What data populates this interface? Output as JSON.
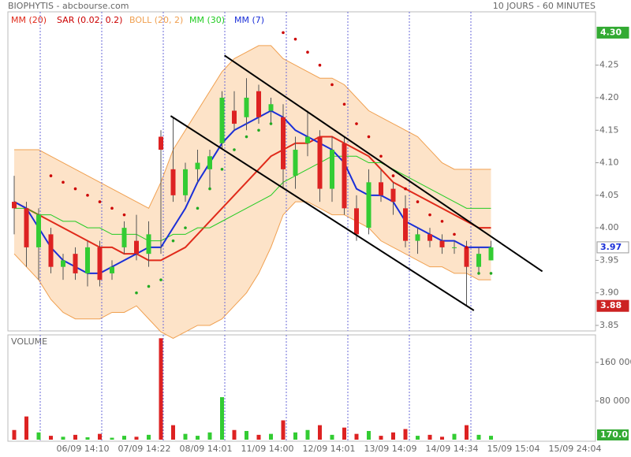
{
  "chart_data": {
    "type": "candlestick",
    "title": "BIOPHYTIS - abcbourse.com",
    "subtitle": "10 JOURS - 60 MINUTES",
    "xlabels": [
      "06/09 14:10",
      "07/09 14:22",
      "08/09 14:01",
      "11/09 14:00",
      "12/09 14:01",
      "13/09 14:09",
      "14/09 14:34",
      "15/09 15:04",
      "15/09 24:04"
    ],
    "up_color": "#33cc33",
    "down_color": "#dd2222",
    "open": [
      4.04,
      4.03,
      3.97,
      3.99,
      3.94,
      3.96,
      3.93,
      3.97,
      3.93,
      3.97,
      3.98,
      3.96,
      4.14,
      4.09,
      4.05,
      4.09,
      4.09,
      4.13,
      4.18,
      4.17,
      4.21,
      4.18,
      4.17,
      4.08,
      4.13,
      4.14,
      4.06,
      4.13,
      4.03,
      4.0,
      4.07,
      4.06,
      4.03,
      3.98,
      3.99,
      3.98,
      3.97,
      3.97,
      3.94,
      3.95
    ],
    "high": [
      4.08,
      4.04,
      4.03,
      4.0,
      3.96,
      3.97,
      3.98,
      3.98,
      3.95,
      4.01,
      4.02,
      4.01,
      4.15,
      4.17,
      4.1,
      4.12,
      4.12,
      4.21,
      4.21,
      4.23,
      4.22,
      4.2,
      4.19,
      4.14,
      4.18,
      4.15,
      4.14,
      4.14,
      4.05,
      4.09,
      4.09,
      4.07,
      4.05,
      4.0,
      4.0,
      3.99,
      3.98,
      3.98,
      3.97,
      3.98
    ],
    "low": [
      3.99,
      3.94,
      3.92,
      3.93,
      3.92,
      3.92,
      3.91,
      3.91,
      3.92,
      3.96,
      3.95,
      3.94,
      3.96,
      4.04,
      4.04,
      4.07,
      4.06,
      4.12,
      4.15,
      4.15,
      4.16,
      4.16,
      4.06,
      4.06,
      4.11,
      4.04,
      4.04,
      4.02,
      3.98,
      3.99,
      4.04,
      4.02,
      3.97,
      3.96,
      3.97,
      3.96,
      3.96,
      3.88,
      3.93,
      3.95
    ],
    "close": [
      4.03,
      3.97,
      4.02,
      3.94,
      3.95,
      3.93,
      3.97,
      3.92,
      3.94,
      4.0,
      3.96,
      3.99,
      4.12,
      4.05,
      4.09,
      4.1,
      4.11,
      4.2,
      4.16,
      4.2,
      4.17,
      4.19,
      4.09,
      4.12,
      4.14,
      4.06,
      4.12,
      4.03,
      3.99,
      4.07,
      4.05,
      4.04,
      3.98,
      3.99,
      3.98,
      3.97,
      3.97,
      3.94,
      3.96,
      3.97
    ],
    "lines": [
      {
        "name": "MM (20)",
        "color": "#e02a1a",
        "values": [
          4.04,
          4.03,
          4.02,
          4.01,
          4.0,
          3.99,
          3.98,
          3.97,
          3.97,
          3.96,
          3.96,
          3.95,
          3.95,
          3.96,
          3.97,
          3.99,
          4.01,
          4.03,
          4.05,
          4.07,
          4.09,
          4.11,
          4.12,
          4.13,
          4.13,
          4.14,
          4.14,
          4.13,
          4.12,
          4.11,
          4.09,
          4.07,
          4.06,
          4.05,
          4.04,
          4.03,
          4.02,
          4.01,
          4.0,
          4.0
        ]
      },
      {
        "name": "MM (30)",
        "color": "#22cc22",
        "values": [
          4.03,
          4.03,
          4.02,
          4.02,
          4.01,
          4.01,
          4.0,
          4.0,
          3.99,
          3.99,
          3.99,
          3.98,
          3.98,
          3.99,
          3.99,
          4.0,
          4.0,
          4.01,
          4.02,
          4.03,
          4.04,
          4.05,
          4.07,
          4.08,
          4.09,
          4.1,
          4.11,
          4.11,
          4.11,
          4.1,
          4.1,
          4.09,
          4.08,
          4.07,
          4.06,
          4.05,
          4.04,
          4.03,
          4.03,
          4.03
        ]
      },
      {
        "name": "MM (7)",
        "color": "#1a2fd8",
        "values": [
          4.04,
          4.03,
          4.0,
          3.97,
          3.95,
          3.94,
          3.93,
          3.93,
          3.94,
          3.95,
          3.96,
          3.97,
          3.97,
          4.0,
          4.03,
          4.07,
          4.1,
          4.13,
          4.15,
          4.16,
          4.17,
          4.18,
          4.17,
          4.15,
          4.14,
          4.13,
          4.12,
          4.1,
          4.06,
          4.05,
          4.05,
          4.04,
          4.01,
          4.0,
          3.99,
          3.98,
          3.98,
          3.97,
          3.97,
          3.97
        ]
      }
    ],
    "boll": {
      "name": "BOLL (20, 2)",
      "color": "#f0a050",
      "fill": "#fde3c8",
      "upper": [
        4.12,
        4.12,
        4.12,
        4.11,
        4.1,
        4.09,
        4.08,
        4.07,
        4.06,
        4.05,
        4.04,
        4.03,
        4.07,
        4.12,
        4.15,
        4.18,
        4.21,
        4.24,
        4.26,
        4.27,
        4.28,
        4.28,
        4.26,
        4.25,
        4.24,
        4.23,
        4.23,
        4.22,
        4.2,
        4.18,
        4.17,
        4.16,
        4.15,
        4.14,
        4.12,
        4.1,
        4.09,
        4.09,
        4.09,
        4.09
      ],
      "lower": [
        3.96,
        3.94,
        3.92,
        3.89,
        3.87,
        3.86,
        3.86,
        3.86,
        3.87,
        3.87,
        3.88,
        3.86,
        3.84,
        3.83,
        3.84,
        3.85,
        3.85,
        3.86,
        3.88,
        3.9,
        3.93,
        3.97,
        4.02,
        4.04,
        4.04,
        4.03,
        4.02,
        4.02,
        4.01,
        4.0,
        3.98,
        3.97,
        3.96,
        3.95,
        3.94,
        3.94,
        3.93,
        3.93,
        3.92,
        3.92
      ]
    },
    "sar": {
      "name": "SAR (0.02, 0.2)",
      "color": "#cc0000",
      "up_color": "#22aa22",
      "values": [
        null,
        null,
        null,
        4.08,
        4.07,
        4.06,
        4.05,
        4.04,
        4.03,
        4.02,
        3.9,
        3.91,
        3.92,
        3.98,
        4.0,
        4.03,
        4.06,
        4.09,
        4.12,
        4.14,
        4.15,
        4.16,
        4.3,
        4.29,
        4.27,
        4.25,
        4.22,
        4.19,
        4.16,
        4.14,
        4.11,
        4.08,
        4.06,
        4.04,
        4.02,
        4.01,
        3.99,
        3.97,
        3.93,
        3.93
      ]
    },
    "trendlines": [
      {
        "x": [
          17.2,
          43.2
        ],
        "y": [
          4.265,
          3.933
        ]
      },
      {
        "x": [
          12.8,
          37.6
        ],
        "y": [
          4.172,
          3.873
        ]
      }
    ],
    "ylim": [
      3.8415,
      4.332
    ],
    "yticks": [
      4.25,
      {
        "value": 4.2,
        "label": "4.20"
      },
      4.15,
      {
        "value": 4.1,
        "label": "4.10"
      },
      4.05,
      {
        "value": 4.0,
        "label": "4.00"
      },
      3.95,
      {
        "value": 3.9,
        "label": "3.90"
      },
      3.85
    ],
    "price_markers": [
      {
        "value": 4.3,
        "label": "4.30",
        "color": "#33aa33"
      },
      {
        "value": 3.97,
        "label": "3.97",
        "color": "#ffffff"
      },
      {
        "value": 3.88,
        "label": "3.88",
        "color": "#cc2222"
      }
    ],
    "volume": {
      "title": "VOLUME",
      "badge": "170.0",
      "values": [
        20000,
        48000,
        15000,
        8000,
        6000,
        10000,
        5000,
        12000,
        4000,
        8000,
        6000,
        10000,
        210000,
        30000,
        12000,
        8000,
        15000,
        88000,
        20000,
        18000,
        10000,
        12000,
        40000,
        15000,
        20000,
        30000,
        10000,
        25000,
        12000,
        18000,
        8000,
        15000,
        22000,
        8000,
        10000,
        6000,
        12000,
        30000,
        10000,
        8000
      ],
      "ylim": [
        0,
        217000
      ],
      "yticks": [
        {
          "value": 160000,
          "label": "160 000"
        },
        {
          "value": 80000,
          "label": "80 000"
        }
      ]
    }
  }
}
